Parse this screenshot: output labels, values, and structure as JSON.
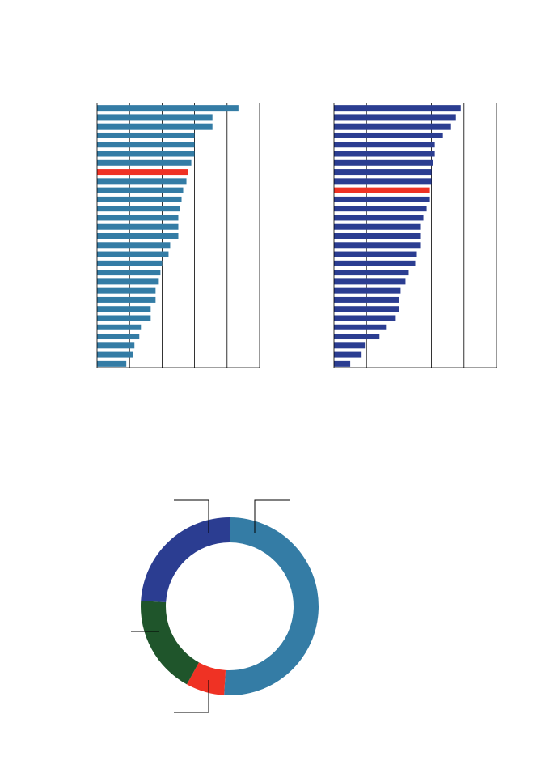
{
  "colors": {
    "teal": "#347ca5",
    "navy": "#2b3d91",
    "red": "#ef3224",
    "green": "#1f552b",
    "grid": "#000000"
  },
  "chart_data": [
    {
      "type": "bar",
      "orientation": "horizontal",
      "xlim": [
        0,
        100
      ],
      "grid": true,
      "bar_color": "#347ca5",
      "highlight_color": "#ef3224",
      "highlight_index": 7,
      "values": [
        87,
        71,
        71,
        60,
        60,
        60,
        58,
        56,
        55,
        53,
        52,
        51,
        50,
        50,
        50,
        45,
        44,
        40,
        39,
        38,
        36,
        36,
        33,
        33,
        27,
        26,
        23,
        22,
        18
      ]
    },
    {
      "type": "bar",
      "orientation": "horizontal",
      "xlim": [
        0,
        100
      ],
      "grid": true,
      "bar_color": "#2b3d91",
      "highlight_color": "#ef3224",
      "highlight_index": 9,
      "values": [
        78,
        75,
        72,
        67,
        62,
        62,
        61,
        60,
        60,
        59,
        59,
        57,
        55,
        53,
        53,
        53,
        51,
        50,
        46,
        44,
        41,
        40,
        40,
        38,
        32,
        28,
        19,
        17,
        10
      ]
    },
    {
      "type": "pie",
      "donut": true,
      "slices": [
        {
          "value": 51,
          "color": "#347ca5"
        },
        {
          "value": 7,
          "color": "#ef3224"
        },
        {
          "value": 18,
          "color": "#1f552b"
        },
        {
          "value": 24,
          "color": "#2b3d91"
        }
      ]
    }
  ]
}
